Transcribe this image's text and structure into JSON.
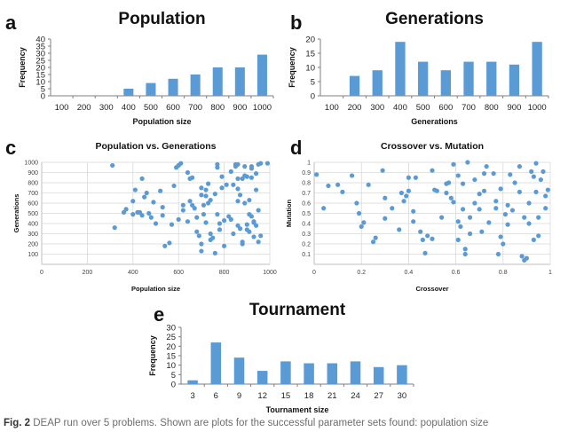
{
  "caption": {
    "label": "Fig. 2",
    "text": "DEAP run over 5 problems. Shown are plots for the successful parameter sets found: population size"
  },
  "colors": {
    "bar": "#5b9bd5",
    "point": "#5b9bd5",
    "grid": "#d9d9d9",
    "axis": "#7f7f7f"
  },
  "chart_data": [
    {
      "panel": "a",
      "type": "bar",
      "title": "Population",
      "xlabel": "Population size",
      "ylabel": "Frequency",
      "categories": [
        "100",
        "200",
        "300",
        "400",
        "500",
        "600",
        "700",
        "800",
        "900",
        "1000"
      ],
      "values": [
        0,
        0,
        0,
        5,
        9,
        12,
        15,
        20,
        20,
        29
      ],
      "ylim": [
        0,
        40
      ],
      "yticks": [
        0,
        5,
        10,
        15,
        20,
        25,
        30,
        35,
        40
      ],
      "grid": false
    },
    {
      "panel": "b",
      "type": "bar",
      "title": "Generations",
      "xlabel": "Generations",
      "ylabel": "Frequency",
      "categories": [
        "100",
        "200",
        "300",
        "400",
        "500",
        "600",
        "700",
        "800",
        "900",
        "1000"
      ],
      "values": [
        0,
        7,
        9,
        19,
        12,
        9,
        12,
        12,
        11,
        19
      ],
      "ylim": [
        0,
        20
      ],
      "yticks": [
        0,
        5,
        10,
        15,
        20
      ],
      "grid": false
    },
    {
      "panel": "c",
      "type": "scatter",
      "title": "Population vs. Generations",
      "xlabel": "Population size",
      "ylabel": "Generations",
      "xlim": [
        0,
        1000
      ],
      "ylim": [
        0,
        1000
      ],
      "xticks": [
        0,
        200,
        400,
        600,
        800,
        1000
      ],
      "yticks": [
        100,
        200,
        300,
        400,
        500,
        600,
        700,
        800,
        900,
        1000
      ],
      "grid": true,
      "points": [
        [
          310,
          970
        ],
        [
          320,
          360
        ],
        [
          360,
          510
        ],
        [
          370,
          540
        ],
        [
          400,
          490
        ],
        [
          400,
          620
        ],
        [
          410,
          730
        ],
        [
          420,
          510
        ],
        [
          430,
          510
        ],
        [
          440,
          840
        ],
        [
          440,
          480
        ],
        [
          450,
          660
        ],
        [
          460,
          700
        ],
        [
          470,
          500
        ],
        [
          480,
          460
        ],
        [
          490,
          610
        ],
        [
          500,
          400
        ],
        [
          520,
          720
        ],
        [
          530,
          560
        ],
        [
          530,
          480
        ],
        [
          540,
          180
        ],
        [
          560,
          210
        ],
        [
          570,
          390
        ],
        [
          580,
          770
        ],
        [
          600,
          970
        ],
        [
          600,
          970
        ],
        [
          610,
          990
        ],
        [
          600,
          440
        ],
        [
          620,
          580
        ],
        [
          620,
          530
        ],
        [
          640,
          420
        ],
        [
          650,
          620
        ],
        [
          660,
          850
        ],
        [
          660,
          580
        ],
        [
          670,
          550
        ],
        [
          680,
          460
        ],
        [
          680,
          320
        ],
        [
          690,
          280
        ],
        [
          700,
          130
        ],
        [
          700,
          750
        ],
        [
          700,
          680
        ],
        [
          710,
          580
        ],
        [
          710,
          490
        ],
        [
          720,
          730
        ],
        [
          720,
          670
        ],
        [
          720,
          410
        ],
        [
          730,
          790
        ],
        [
          730,
          600
        ],
        [
          740,
          630
        ],
        [
          740,
          300
        ],
        [
          740,
          240
        ],
        [
          750,
          260
        ],
        [
          760,
          690
        ],
        [
          770,
          980
        ],
        [
          770,
          950
        ],
        [
          770,
          490
        ],
        [
          780,
          400
        ],
        [
          780,
          340
        ],
        [
          790,
          860
        ],
        [
          790,
          750
        ],
        [
          800,
          430
        ],
        [
          800,
          180
        ],
        [
          810,
          780
        ],
        [
          820,
          470
        ],
        [
          830,
          910
        ],
        [
          830,
          440
        ],
        [
          840,
          780
        ],
        [
          840,
          300
        ],
        [
          850,
          980
        ],
        [
          850,
          960
        ],
        [
          860,
          980
        ],
        [
          860,
          840
        ],
        [
          860,
          740
        ],
        [
          860,
          380
        ],
        [
          870,
          680
        ],
        [
          870,
          350
        ],
        [
          880,
          840
        ],
        [
          880,
          220
        ],
        [
          880,
          200
        ],
        [
          890,
          960
        ],
        [
          890,
          870
        ],
        [
          890,
          600
        ],
        [
          900,
          860
        ],
        [
          900,
          390
        ],
        [
          900,
          340
        ],
        [
          910,
          490
        ],
        [
          910,
          320
        ],
        [
          920,
          940
        ],
        [
          920,
          960
        ],
        [
          920,
          470
        ],
        [
          930,
          270
        ],
        [
          930,
          410
        ],
        [
          930,
          420
        ],
        [
          940,
          890
        ],
        [
          940,
          730
        ],
        [
          940,
          380
        ],
        [
          950,
          980
        ],
        [
          950,
          220
        ],
        [
          950,
          530
        ],
        [
          960,
          990
        ],
        [
          960,
          280
        ],
        [
          990,
          990
        ],
        [
          920,
          850
        ],
        [
          910,
          630
        ],
        [
          860,
          620
        ],
        [
          700,
          200
        ],
        [
          760,
          110
        ],
        [
          650,
          840
        ],
        [
          590,
          950
        ],
        [
          640,
          900
        ]
      ]
    },
    {
      "panel": "d",
      "type": "scatter",
      "title": "Crossover vs. Mutation",
      "xlabel": "Crossover",
      "ylabel": "Mutation",
      "xlim": [
        0,
        1
      ],
      "ylim": [
        0,
        1
      ],
      "xticks": [
        0,
        0.2,
        0.4,
        0.6,
        0.8,
        1
      ],
      "yticks": [
        0.1,
        0.2,
        0.3,
        0.4,
        0.5,
        0.6,
        0.7,
        0.8,
        0.9,
        1
      ],
      "grid": true,
      "points": [
        [
          0.01,
          0.88
        ],
        [
          0.04,
          0.55
        ],
        [
          0.06,
          0.77
        ],
        [
          0.1,
          0.78
        ],
        [
          0.12,
          0.71
        ],
        [
          0.16,
          0.87
        ],
        [
          0.18,
          0.6
        ],
        [
          0.19,
          0.5
        ],
        [
          0.2,
          0.37
        ],
        [
          0.21,
          0.41
        ],
        [
          0.23,
          0.78
        ],
        [
          0.25,
          0.22
        ],
        [
          0.26,
          0.26
        ],
        [
          0.29,
          0.92
        ],
        [
          0.3,
          0.65
        ],
        [
          0.33,
          0.55
        ],
        [
          0.36,
          0.34
        ],
        [
          0.37,
          0.7
        ],
        [
          0.38,
          0.62
        ],
        [
          0.39,
          0.67
        ],
        [
          0.4,
          0.85
        ],
        [
          0.42,
          0.52
        ],
        [
          0.42,
          0.42
        ],
        [
          0.43,
          0.85
        ],
        [
          0.45,
          0.32
        ],
        [
          0.46,
          0.24
        ],
        [
          0.47,
          0.11
        ],
        [
          0.48,
          0.28
        ],
        [
          0.5,
          0.25
        ],
        [
          0.51,
          0.73
        ],
        [
          0.52,
          0.72
        ],
        [
          0.54,
          0.46
        ],
        [
          0.56,
          0.79
        ],
        [
          0.57,
          0.8
        ],
        [
          0.58,
          0.65
        ],
        [
          0.59,
          0.98
        ],
        [
          0.59,
          0.61
        ],
        [
          0.61,
          0.87
        ],
        [
          0.61,
          0.42
        ],
        [
          0.61,
          0.24
        ],
        [
          0.62,
          0.37
        ],
        [
          0.63,
          0.79
        ],
        [
          0.63,
          0.54
        ],
        [
          0.64,
          0.1
        ],
        [
          0.64,
          0.15
        ],
        [
          0.65,
          1.0
        ],
        [
          0.66,
          0.46
        ],
        [
          0.68,
          0.83
        ],
        [
          0.68,
          0.6
        ],
        [
          0.7,
          0.69
        ],
        [
          0.7,
          0.54
        ],
        [
          0.71,
          0.32
        ],
        [
          0.72,
          0.89
        ],
        [
          0.72,
          0.72
        ],
        [
          0.73,
          0.96
        ],
        [
          0.74,
          0.41
        ],
        [
          0.76,
          0.89
        ],
        [
          0.77,
          0.62
        ],
        [
          0.77,
          0.55
        ],
        [
          0.78,
          0.1
        ],
        [
          0.79,
          0.74
        ],
        [
          0.79,
          0.27
        ],
        [
          0.81,
          0.49
        ],
        [
          0.82,
          0.58
        ],
        [
          0.82,
          0.39
        ],
        [
          0.83,
          0.88
        ],
        [
          0.84,
          0.53
        ],
        [
          0.87,
          0.96
        ],
        [
          0.87,
          0.71
        ],
        [
          0.88,
          0.08
        ],
        [
          0.89,
          0.04
        ],
        [
          0.89,
          0.46
        ],
        [
          0.9,
          0.06
        ],
        [
          0.91,
          0.4
        ],
        [
          0.91,
          0.6
        ],
        [
          0.92,
          0.91
        ],
        [
          0.93,
          0.86
        ],
        [
          0.93,
          0.24
        ],
        [
          0.94,
          0.71
        ],
        [
          0.94,
          0.99
        ],
        [
          0.95,
          0.46
        ],
        [
          0.95,
          0.28
        ],
        [
          0.96,
          0.83
        ],
        [
          0.97,
          0.91
        ],
        [
          0.98,
          0.67
        ],
        [
          0.99,
          0.73
        ],
        [
          0.98,
          0.55
        ],
        [
          0.5,
          0.92
        ],
        [
          0.85,
          0.8
        ],
        [
          0.66,
          0.3
        ],
        [
          0.56,
          0.7
        ],
        [
          0.4,
          0.72
        ],
        [
          0.3,
          0.45
        ],
        [
          0.8,
          0.2
        ]
      ]
    },
    {
      "panel": "e",
      "type": "bar",
      "title": "Tournament",
      "xlabel": "Tournament size",
      "ylabel": "Frequency",
      "categories": [
        "3",
        "6",
        "9",
        "12",
        "15",
        "18",
        "21",
        "24",
        "27",
        "30"
      ],
      "values": [
        2,
        22,
        14,
        7,
        12,
        11,
        11,
        12,
        9,
        10
      ],
      "ylim": [
        0,
        30
      ],
      "yticks": [
        0,
        5,
        10,
        15,
        20,
        25,
        30
      ],
      "grid": false
    }
  ]
}
